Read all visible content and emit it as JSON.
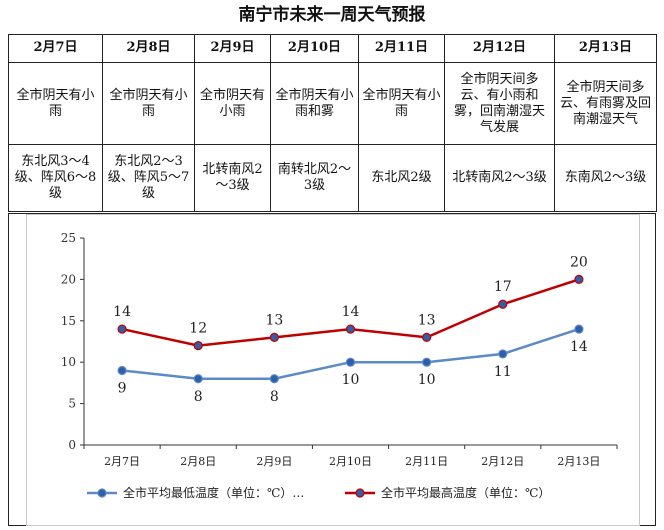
{
  "title": "南宁市未来一周天气预报",
  "days": [
    {
      "date": "2月7日",
      "weather": "全市阴天有小雨",
      "wind": "东北风3～4级、阵风6～8级"
    },
    {
      "date": "2月8日",
      "weather": "全市阴天有小雨",
      "wind": "东北风2～3级、阵风5～7级"
    },
    {
      "date": "2月9日",
      "weather": "全市阴天有小雨",
      "wind": "北转南风2～3级"
    },
    {
      "date": "2月10日",
      "weather": "全市阴天有小雨和雾",
      "wind": "南转北风2～3级"
    },
    {
      "date": "2月11日",
      "weather": "全市阴天有小雨",
      "wind": "东北风2级"
    },
    {
      "date": "2月12日",
      "weather": "全市阴天间多云、有小雨和雾，回南潮湿天气发展",
      "wind": "北转南风2～3级"
    },
    {
      "date": "2月13日",
      "weather": "全市阴天间多云、有雨雾及回南潮湿天气",
      "wind": "东南风2～3级"
    }
  ],
  "chart_data": {
    "type": "line",
    "categories": [
      "2月7日",
      "2月8日",
      "2月9日",
      "2月10日",
      "2月11日",
      "2月12日",
      "2月13日"
    ],
    "series": [
      {
        "name": "全市平均最低温度（单位：℃）…",
        "color": "#5b8ac6",
        "values": [
          9,
          8,
          8,
          10,
          10,
          11,
          14
        ]
      },
      {
        "name": "全市平均最高温度（单位：℃）",
        "color": "#c00000",
        "values": [
          14,
          12,
          13,
          14,
          13,
          17,
          20
        ]
      }
    ],
    "y_ticks": [
      "0",
      "5",
      "10",
      "15",
      "20",
      "25"
    ],
    "ylim": [
      0,
      25
    ],
    "grid": false,
    "legend_position": "bottom"
  }
}
